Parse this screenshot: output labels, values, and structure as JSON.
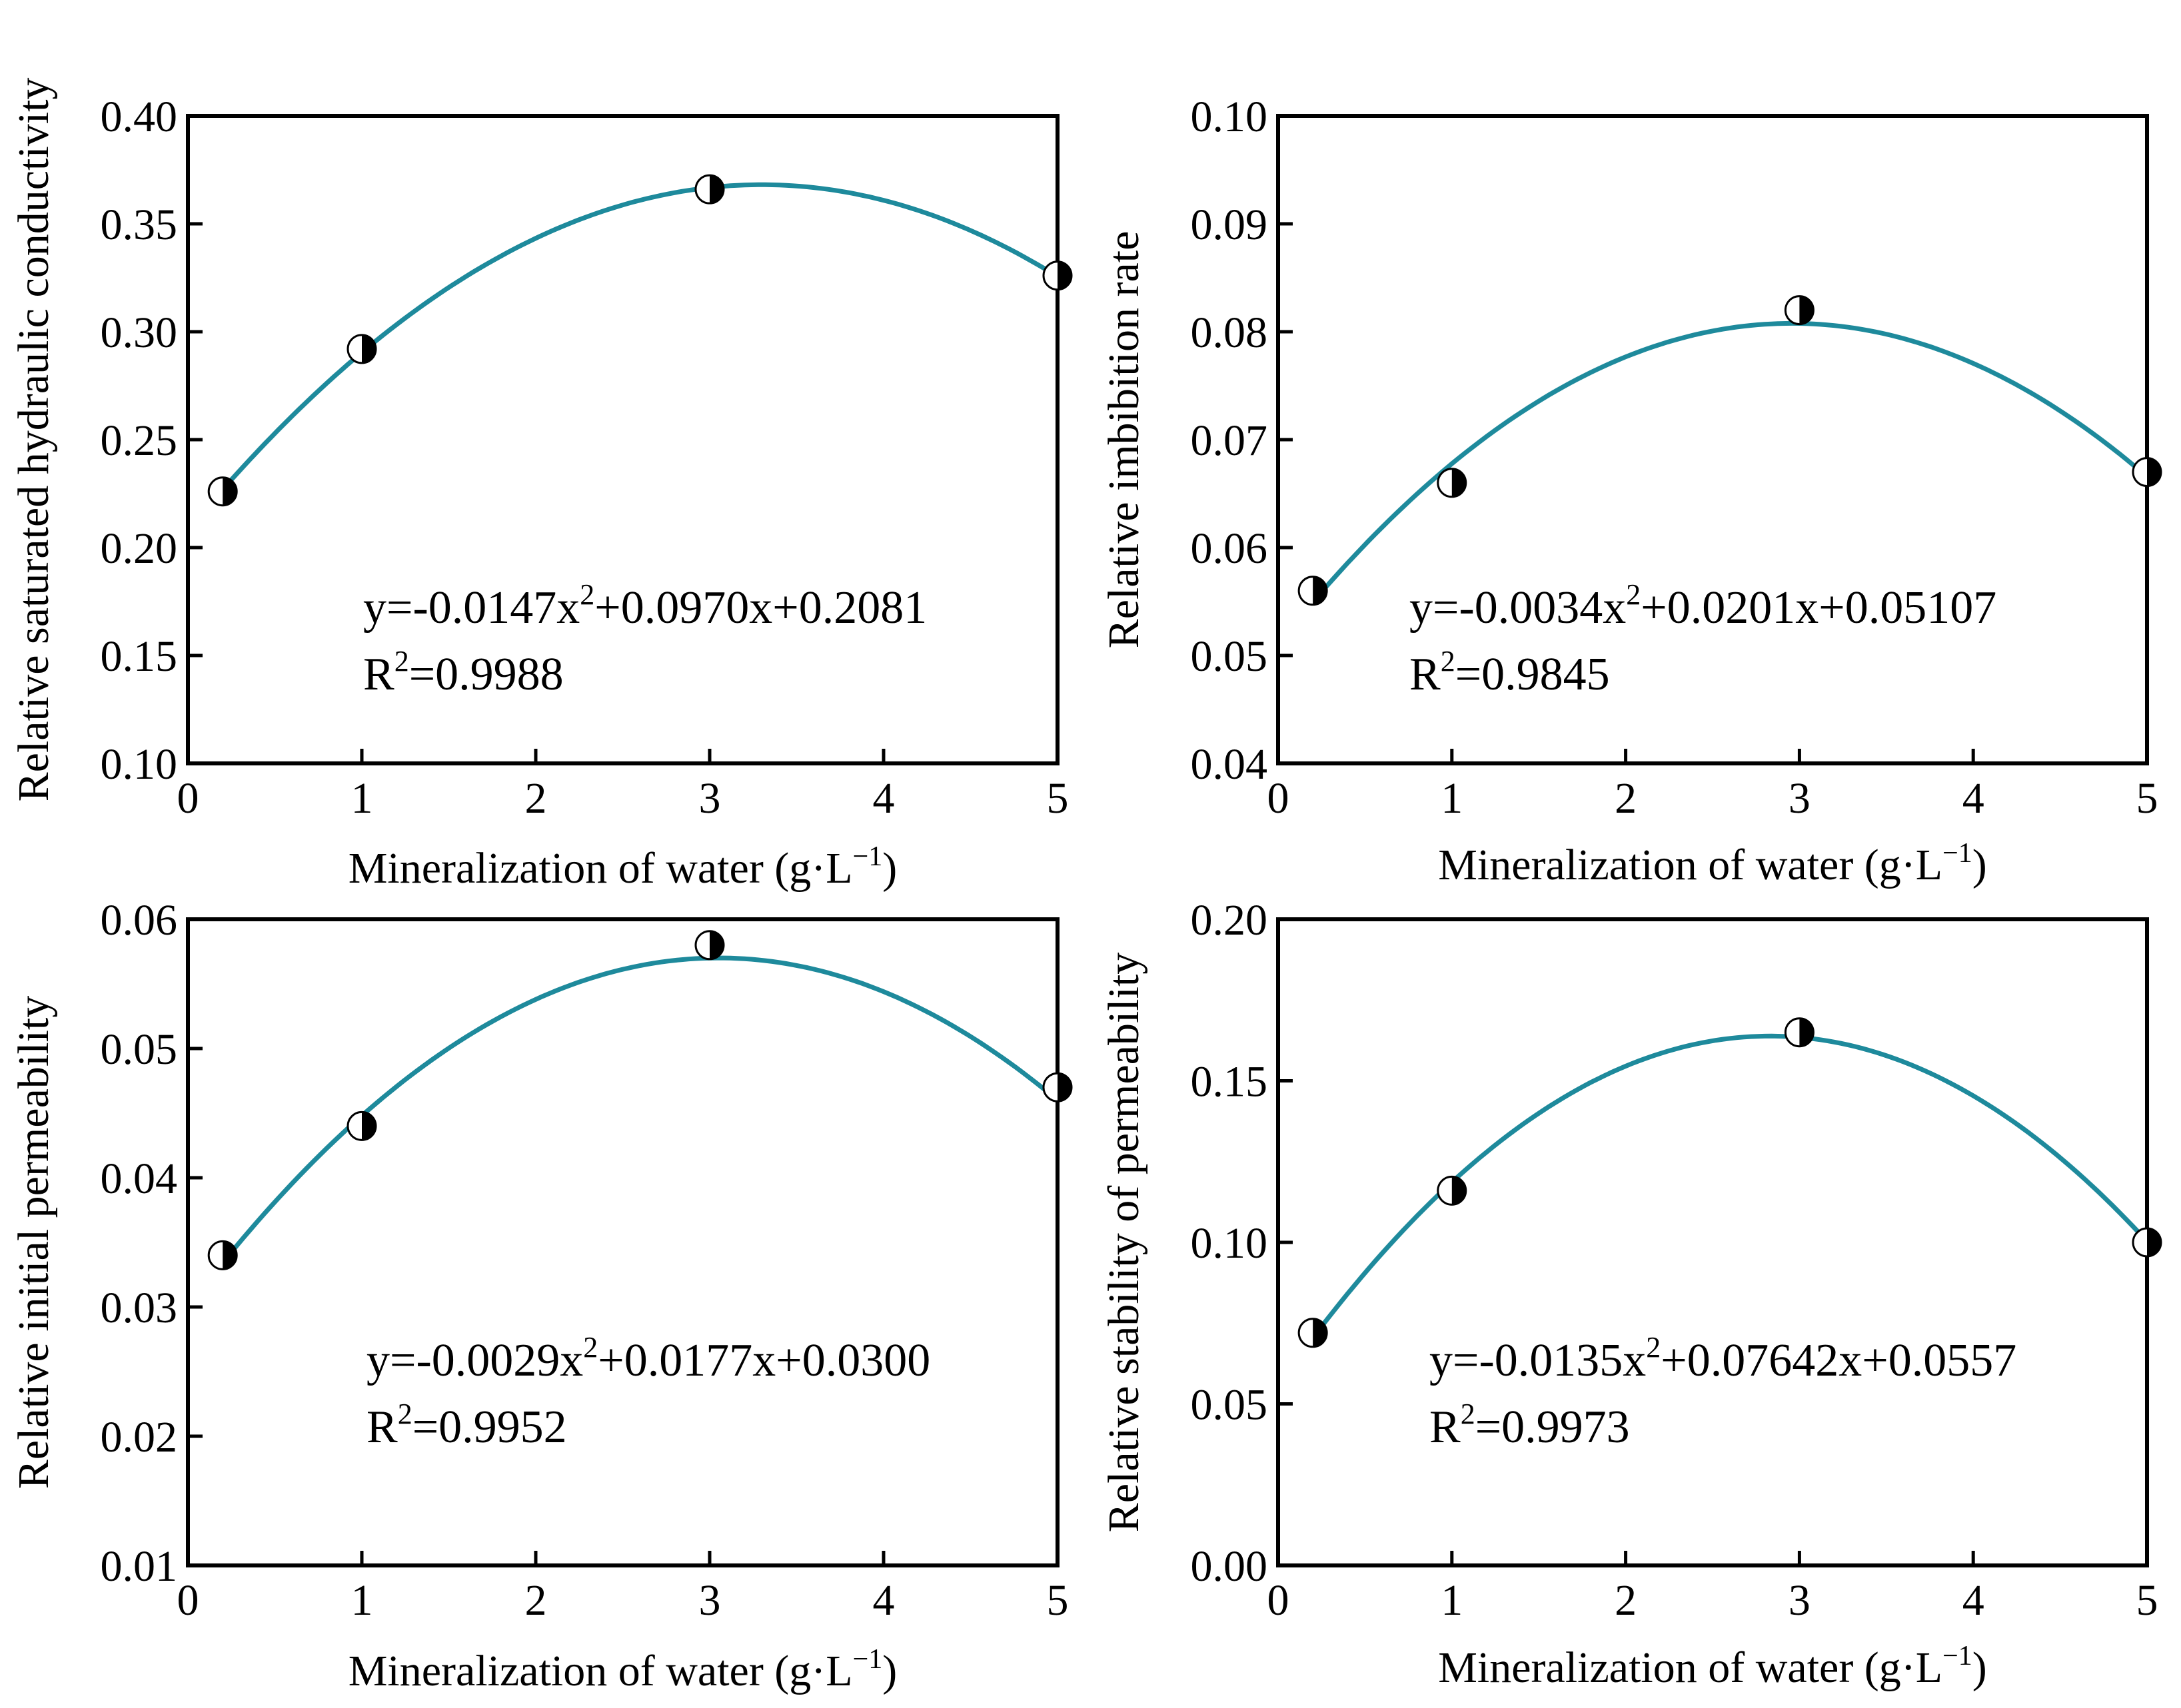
{
  "colors": {
    "curve": "#1E8A9C",
    "marker_fill": "#000000",
    "marker_open": "#ffffff"
  },
  "chart_data": [
    {
      "type": "scatter",
      "id": "a",
      "title": "",
      "xlabel": "Mineralization of water (g·L",
      "xlabel_sup": "−1",
      "xlabel_end": ")",
      "ylabel": "Relative saturated hydraulic conductivity",
      "xlim": [
        0,
        5
      ],
      "ylim": [
        0.1,
        0.4
      ],
      "xticks": [
        0,
        1,
        2,
        3,
        4,
        5
      ],
      "xtick_labels": [
        "0",
        "1",
        "2",
        "3",
        "4",
        "5"
      ],
      "yticks": [
        0.1,
        0.15,
        0.2,
        0.25,
        0.3,
        0.35,
        0.4
      ],
      "ytick_labels": [
        "0.10",
        "0.15",
        "0.20",
        "0.25",
        "0.30",
        "0.35",
        "0.40"
      ],
      "points": [
        {
          "x": 0.2,
          "y": 0.226
        },
        {
          "x": 1,
          "y": 0.292
        },
        {
          "x": 3,
          "y": 0.366
        },
        {
          "x": 5,
          "y": 0.326
        }
      ],
      "fit": {
        "a": -0.0147,
        "b": 0.097,
        "c": 0.2081,
        "x_from": 0.2,
        "x_to": 5
      },
      "equation": {
        "prefix": "y=-0.0147x",
        "sup": "2",
        "suffix": "+0.0970x+0.2081",
        "r_prefix": "R",
        "r_sup": "2",
        "r_suffix": "=0.9988"
      }
    },
    {
      "type": "scatter",
      "id": "b",
      "title": "",
      "xlabel": "Mineralization of water (g·L",
      "xlabel_sup": "−1",
      "xlabel_end": ")",
      "ylabel": "Relative imbibition rate",
      "xlim": [
        0,
        5
      ],
      "ylim": [
        0.04,
        0.1
      ],
      "xticks": [
        0,
        1,
        2,
        3,
        4,
        5
      ],
      "xtick_labels": [
        "0",
        "1",
        "2",
        "3",
        "4",
        "5"
      ],
      "yticks": [
        0.04,
        0.05,
        0.06,
        0.07,
        0.08,
        0.09,
        0.1
      ],
      "ytick_labels": [
        "0.04",
        "0.05",
        "0.06",
        "0.07",
        "0.08",
        "0.09",
        "0.10"
      ],
      "points": [
        {
          "x": 0.2,
          "y": 0.056
        },
        {
          "x": 1,
          "y": 0.066
        },
        {
          "x": 3,
          "y": 0.082
        },
        {
          "x": 5,
          "y": 0.067
        }
      ],
      "fit": {
        "a": -0.0034,
        "b": 0.0201,
        "c": 0.05107,
        "x_from": 0.2,
        "x_to": 5
      },
      "equation": {
        "prefix": "y=-0.0034x",
        "sup": "2",
        "suffix": "+0.0201x+0.05107",
        "r_prefix": "R",
        "r_sup": "2",
        "r_suffix": "=0.9845"
      }
    },
    {
      "type": "scatter",
      "id": "c",
      "title": "",
      "xlabel": "Mineralization of water (g·L",
      "xlabel_sup": "−1",
      "xlabel_end": ")",
      "ylabel": "Relative initial permeability",
      "xlim": [
        0,
        5
      ],
      "ylim": [
        0.01,
        0.06
      ],
      "xticks": [
        0,
        1,
        2,
        3,
        4,
        5
      ],
      "xtick_labels": [
        "0",
        "1",
        "2",
        "3",
        "4",
        "5"
      ],
      "yticks": [
        0.01,
        0.02,
        0.03,
        0.04,
        0.05,
        0.06
      ],
      "ytick_labels": [
        "0.01",
        "0.02",
        "0.03",
        "0.04",
        "0.05",
        "0.06"
      ],
      "points": [
        {
          "x": 0.2,
          "y": 0.034
        },
        {
          "x": 1,
          "y": 0.044
        },
        {
          "x": 3,
          "y": 0.058
        },
        {
          "x": 5,
          "y": 0.047
        }
      ],
      "fit": {
        "a": -0.0029,
        "b": 0.0177,
        "c": 0.03,
        "x_from": 0.2,
        "x_to": 5
      },
      "equation": {
        "prefix": "y=-0.0029x",
        "sup": "2",
        "suffix": "+0.0177x+0.0300",
        "r_prefix": "R",
        "r_sup": "2",
        "r_suffix": "=0.9952"
      }
    },
    {
      "type": "scatter",
      "id": "d",
      "title": "",
      "xlabel": "Mineralization of water (g·L",
      "xlabel_sup": "−1",
      "xlabel_end": ")",
      "ylabel": "Relative stability of permeability",
      "xlim": [
        0,
        5
      ],
      "ylim": [
        0.0,
        0.2
      ],
      "xticks": [
        0,
        1,
        2,
        3,
        4,
        5
      ],
      "xtick_labels": [
        "0",
        "1",
        "2",
        "3",
        "4",
        "5"
      ],
      "yticks": [
        0.0,
        0.05,
        0.1,
        0.15,
        0.2
      ],
      "ytick_labels": [
        "0.00",
        "0.05",
        "0.10",
        "0.15",
        "0.20"
      ],
      "points": [
        {
          "x": 0.2,
          "y": 0.072
        },
        {
          "x": 1,
          "y": 0.116
        },
        {
          "x": 3,
          "y": 0.165
        },
        {
          "x": 5,
          "y": 0.1
        }
      ],
      "fit": {
        "a": -0.0135,
        "b": 0.07642,
        "c": 0.0557,
        "x_from": 0.2,
        "x_to": 5
      },
      "equation": {
        "prefix": "y=-0.0135x",
        "sup": "2",
        "suffix": "+0.07642x+0.0557",
        "r_prefix": "R",
        "r_sup": "2",
        "r_suffix": "=0.9973"
      }
    }
  ]
}
